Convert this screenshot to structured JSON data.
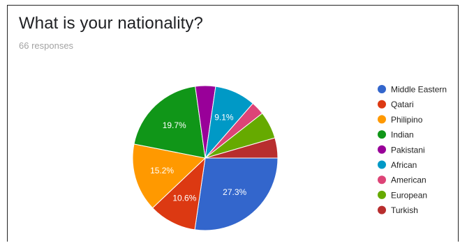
{
  "page": {
    "title": "What is your nationality?",
    "subtitle": "66 responses"
  },
  "chart_data": {
    "type": "pie",
    "legend_position": "right",
    "slices": [
      {
        "label": "Middle Eastern",
        "value": 27.3,
        "color": "#3366cc",
        "data_label": "27.3%"
      },
      {
        "label": "Qatari",
        "value": 10.6,
        "color": "#dc3912",
        "data_label": "10.6%"
      },
      {
        "label": "Philipino",
        "value": 15.2,
        "color": "#ff9900",
        "data_label": "15.2%"
      },
      {
        "label": "Indian",
        "value": 19.7,
        "color": "#109618",
        "data_label": "19.7%"
      },
      {
        "label": "Pakistani",
        "value": 4.5,
        "color": "#990099",
        "data_label": ""
      },
      {
        "label": "African",
        "value": 9.1,
        "color": "#0099c6",
        "data_label": "9.1%"
      },
      {
        "label": "American",
        "value": 3.0,
        "color": "#dd4477",
        "data_label": ""
      },
      {
        "label": "European",
        "value": 6.1,
        "color": "#66aa00",
        "data_label": ""
      },
      {
        "label": "Turkish",
        "value": 4.5,
        "color": "#b82e2e",
        "data_label": ""
      }
    ]
  }
}
